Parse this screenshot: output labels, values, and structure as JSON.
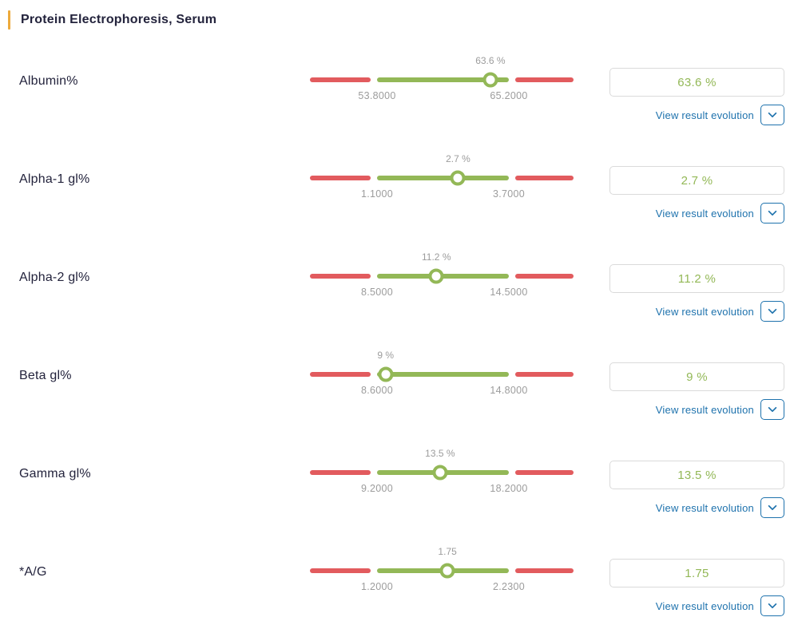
{
  "header": {
    "title": "Protein Electrophoresis, Serum"
  },
  "labels": {
    "view_result_evolution": "View result evolution"
  },
  "colors": {
    "accent_orange": "#edaa3c",
    "normal_green": "#93b857",
    "out_of_range_red": "#e25b5e",
    "link_blue": "#1e72ad",
    "muted_gray": "#9c9c9c"
  },
  "rows": [
    {
      "label": "Albumin%",
      "value_display": "63.6 %",
      "value_num": 63.6,
      "range_min": "53.8000",
      "range_max": "65.2000",
      "range_min_num": 53.8,
      "range_max_num": 65.2,
      "marker_pct": 86
    },
    {
      "label": "Alpha-1 gl%",
      "value_display": "2.7 %",
      "value_num": 2.7,
      "range_min": "1.1000",
      "range_max": "3.7000",
      "range_min_num": 1.1,
      "range_max_num": 3.7,
      "marker_pct": 61.5
    },
    {
      "label": "Alpha-2 gl%",
      "value_display": "11.2 %",
      "value_num": 11.2,
      "range_min": "8.5000",
      "range_max": "14.5000",
      "range_min_num": 8.5,
      "range_max_num": 14.5,
      "marker_pct": 45
    },
    {
      "label": "Beta gl%",
      "value_display": "9 %",
      "value_num": 9,
      "range_min": "8.6000",
      "range_max": "14.8000",
      "range_min_num": 8.6,
      "range_max_num": 14.8,
      "marker_pct": 6.5
    },
    {
      "label": "Gamma gl%",
      "value_display": "13.5 %",
      "value_num": 13.5,
      "range_min": "9.2000",
      "range_max": "18.2000",
      "range_min_num": 9.2,
      "range_max_num": 18.2,
      "marker_pct": 47.8
    },
    {
      "label": "*A/G",
      "value_display": "1.75",
      "value_num": 1.75,
      "range_min": "1.2000",
      "range_max": "2.2300",
      "range_min_num": 1.2,
      "range_max_num": 2.23,
      "marker_pct": 53.4
    }
  ]
}
